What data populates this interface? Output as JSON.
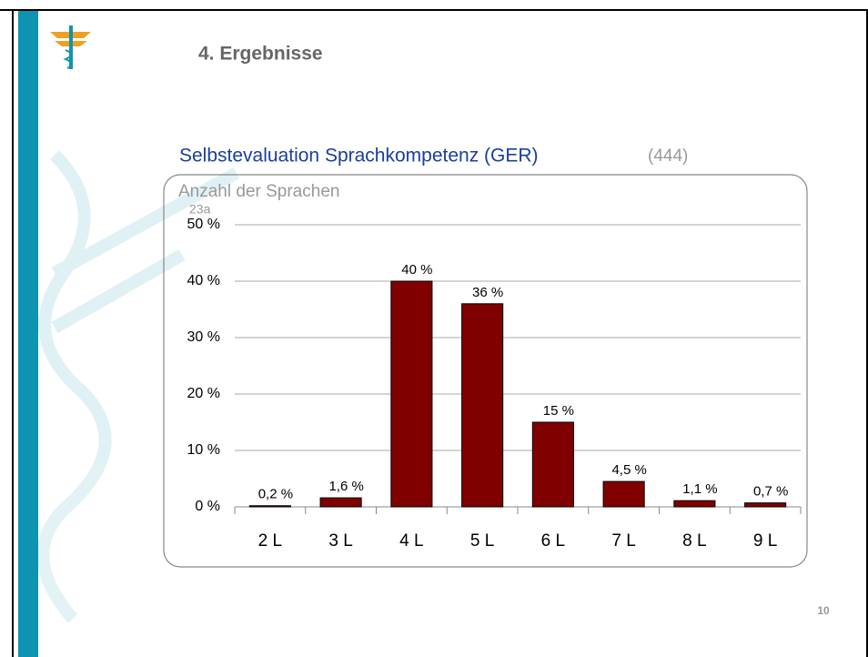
{
  "slide_title": "4. Ergebnisse",
  "page_number": "10",
  "chart_data": {
    "type": "bar",
    "title": "Selbstevaluation Sprachkompetenz (GER)",
    "subtitle": "(444)",
    "y_label": "Anzahl der Sprachen",
    "annotation": "23a",
    "categories": [
      "2 L",
      "3 L",
      "4 L",
      "5 L",
      "6 L",
      "7 L",
      "8 L",
      "9 L"
    ],
    "values": [
      0.2,
      1.6,
      40,
      36,
      15,
      4.5,
      1.1,
      0.7
    ],
    "value_labels": [
      "0,2 %",
      "1,6 %",
      "40 %",
      "36 %",
      "15 %",
      "4,5 %",
      "1,1 %",
      "0,7 %"
    ],
    "color": "#800000",
    "ylim": [
      0,
      50
    ],
    "yticks": [
      {
        "value": 0,
        "label": "0 %"
      },
      {
        "value": 10,
        "label": "10 %"
      },
      {
        "value": 20,
        "label": "20 %"
      },
      {
        "value": 30,
        "label": "30 %"
      },
      {
        "value": 40,
        "label": "40 %"
      },
      {
        "value": 50,
        "label": "50 %"
      }
    ],
    "grid": true
  }
}
